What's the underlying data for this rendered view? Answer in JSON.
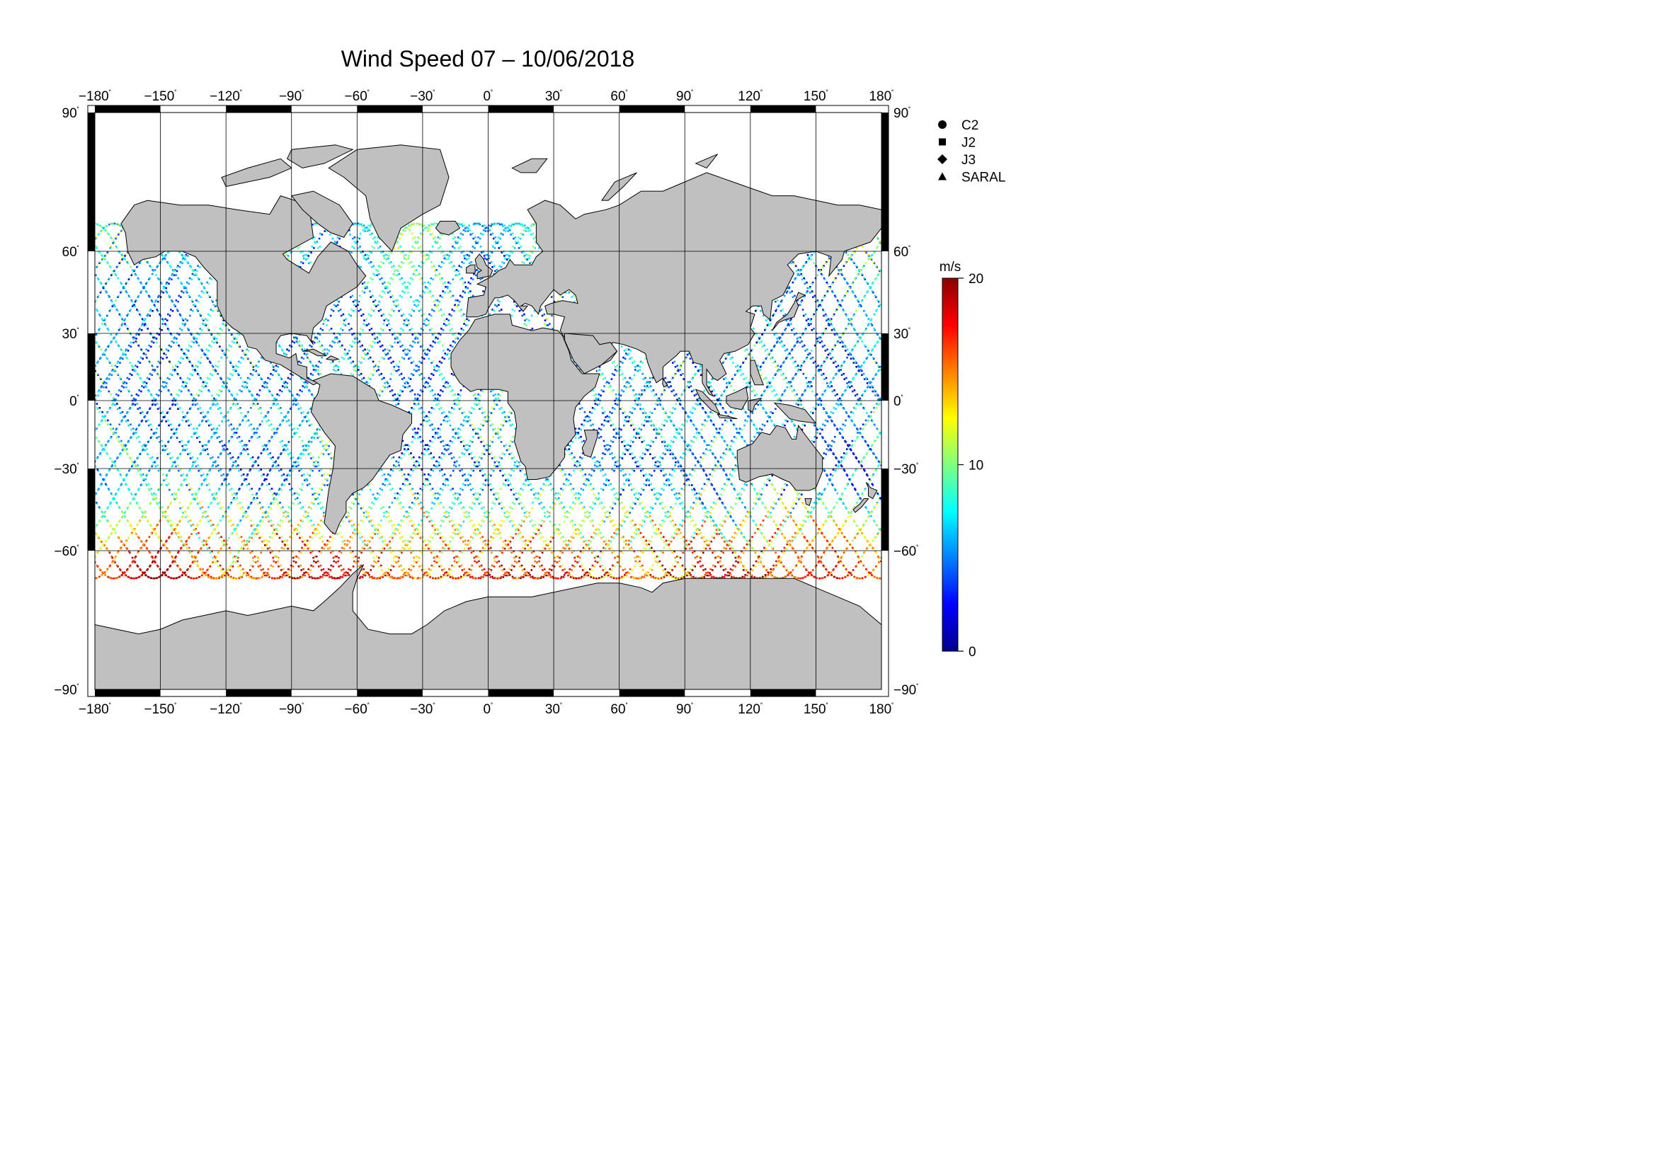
{
  "title": "Wind Speed 07 – 10/06/2018",
  "map": {
    "lon_ticks": [
      -180,
      -150,
      -120,
      -90,
      -60,
      -30,
      0,
      30,
      60,
      90,
      120,
      150,
      180
    ],
    "lat_ticks": [
      90,
      60,
      30,
      0,
      -30,
      -60,
      -90
    ],
    "lon_labels": [
      "−180",
      "−150",
      "−120",
      "−90",
      "−60",
      "−30",
      "0",
      "30",
      "60",
      "90",
      "120",
      "150",
      "180"
    ],
    "lat_labels": [
      "90",
      "60",
      "30",
      "0",
      "−30",
      "−60",
      "−90"
    ],
    "degree_mark": "˚",
    "ocean_color": "#ffffff",
    "land_color": "#c0c0c0",
    "grid_color": "#000000"
  },
  "legend": {
    "items": [
      {
        "label": "C2",
        "marker": "circle"
      },
      {
        "label": "J2",
        "marker": "square"
      },
      {
        "label": "J3",
        "marker": "diamond"
      },
      {
        "label": "SARAL",
        "marker": "triangle"
      }
    ]
  },
  "colorbar": {
    "unit": "m/s",
    "min": 0,
    "max": 20,
    "tick_values": [
      20,
      10,
      0
    ],
    "tick_labels": [
      "20",
      "10",
      "0"
    ],
    "stops": [
      "#00008b",
      "#0000ff",
      "#0080ff",
      "#00ffff",
      "#80ff80",
      "#ffff00",
      "#ff8000",
      "#ff0000",
      "#8b0000"
    ]
  }
}
